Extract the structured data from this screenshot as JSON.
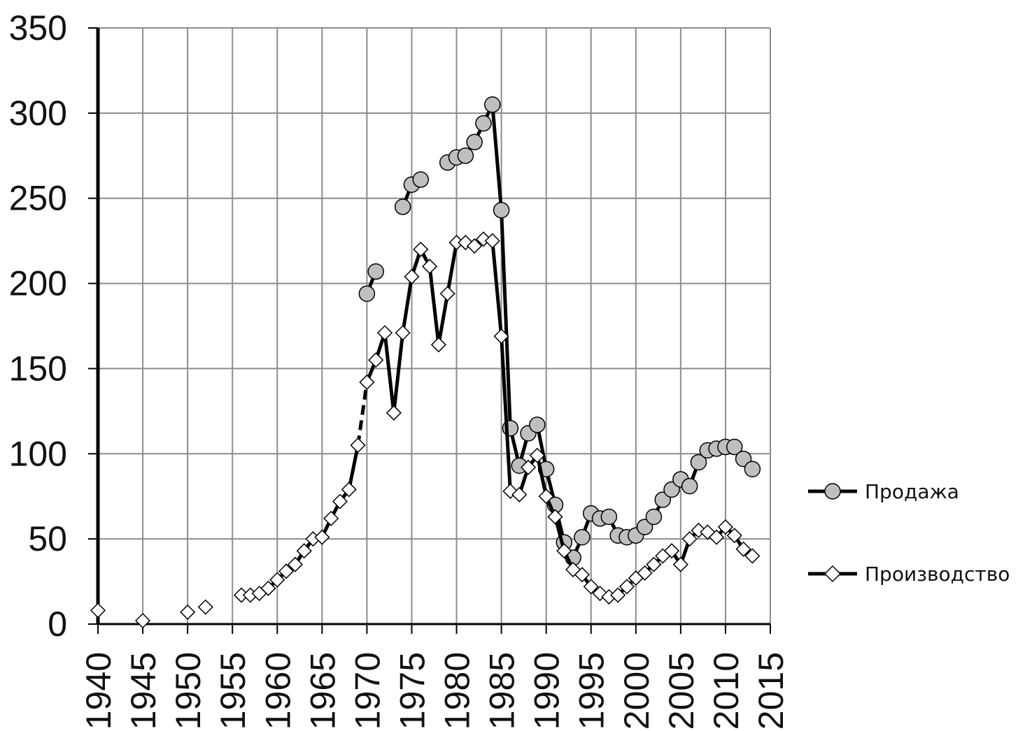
{
  "chart_data": {
    "type": "line",
    "title": "",
    "xlabel": "",
    "ylabel": "",
    "xlim": [
      1940,
      2015
    ],
    "ylim": [
      0,
      350
    ],
    "x_ticks": [
      "1940",
      "1945",
      "1950",
      "1955",
      "1960",
      "1965",
      "1970",
      "1975",
      "1980",
      "1985",
      "1990",
      "1995",
      "2000",
      "2005",
      "2010",
      "2015"
    ],
    "y_ticks": [
      "0",
      "50",
      "100",
      "150",
      "200",
      "250",
      "300",
      "350"
    ],
    "grid": true,
    "legend_position": "right",
    "series": [
      {
        "name": "Продажа",
        "marker": "circle",
        "marker_fill": "#bfbfbf",
        "points": [
          [
            1970,
            194
          ],
          [
            1971,
            207
          ],
          [
            1974,
            245
          ],
          [
            1975,
            258
          ],
          [
            1976,
            261
          ],
          [
            1979,
            271
          ],
          [
            1980,
            274
          ],
          [
            1981,
            275
          ],
          [
            1982,
            283
          ],
          [
            1983,
            294
          ],
          [
            1984,
            305
          ],
          [
            1985,
            243
          ],
          [
            1986,
            115
          ],
          [
            1987,
            93
          ],
          [
            1988,
            112
          ],
          [
            1989,
            117
          ],
          [
            1990,
            91
          ],
          [
            1991,
            70
          ],
          [
            1992,
            48
          ],
          [
            1993,
            39
          ],
          [
            1994,
            51
          ],
          [
            1995,
            65
          ],
          [
            1996,
            62
          ],
          [
            1997,
            63
          ],
          [
            1998,
            52
          ],
          [
            1999,
            51
          ],
          [
            2000,
            52
          ],
          [
            2001,
            57
          ],
          [
            2002,
            63
          ],
          [
            2003,
            73
          ],
          [
            2004,
            79
          ],
          [
            2005,
            85
          ],
          [
            2006,
            81
          ],
          [
            2007,
            95
          ],
          [
            2008,
            102
          ],
          [
            2009,
            103
          ],
          [
            2010,
            104
          ],
          [
            2011,
            104
          ],
          [
            2012,
            97
          ],
          [
            2013,
            91
          ]
        ],
        "segments": [
          [
            0,
            1
          ],
          [
            2,
            4
          ],
          [
            5,
            39
          ]
        ]
      },
      {
        "name": "Производство",
        "marker": "diamond",
        "marker_fill": "#ffffff",
        "points": [
          [
            1940,
            8
          ],
          [
            1945,
            2
          ],
          [
            1950,
            7
          ],
          [
            1952,
            10
          ],
          [
            1956,
            17
          ],
          [
            1957,
            17
          ],
          [
            1958,
            18
          ],
          [
            1959,
            21
          ],
          [
            1960,
            26
          ],
          [
            1961,
            31
          ],
          [
            1962,
            35
          ],
          [
            1963,
            43
          ],
          [
            1964,
            50
          ],
          [
            1965,
            51
          ],
          [
            1966,
            62
          ],
          [
            1967,
            72
          ],
          [
            1968,
            79
          ],
          [
            1969,
            105
          ],
          [
            1970,
            142
          ],
          [
            1971,
            155
          ],
          [
            1972,
            171
          ],
          [
            1973,
            124
          ],
          [
            1974,
            171
          ],
          [
            1975,
            204
          ],
          [
            1976,
            220
          ],
          [
            1977,
            210
          ],
          [
            1978,
            164
          ],
          [
            1979,
            194
          ],
          [
            1980,
            224
          ],
          [
            1981,
            224
          ],
          [
            1982,
            222
          ],
          [
            1983,
            226
          ],
          [
            1984,
            225
          ],
          [
            1985,
            169
          ],
          [
            1986,
            78
          ],
          [
            1987,
            76
          ],
          [
            1988,
            92
          ],
          [
            1989,
            99
          ],
          [
            1990,
            75
          ],
          [
            1991,
            63
          ],
          [
            1992,
            43
          ],
          [
            1993,
            32
          ],
          [
            1994,
            29
          ],
          [
            1995,
            22
          ],
          [
            1996,
            18
          ],
          [
            1997,
            16
          ],
          [
            1998,
            17
          ],
          [
            1999,
            22
          ],
          [
            2000,
            27
          ],
          [
            2001,
            30
          ],
          [
            2002,
            35
          ],
          [
            2003,
            40
          ],
          [
            2004,
            43
          ],
          [
            2005,
            35
          ],
          [
            2006,
            50
          ],
          [
            2007,
            55
          ],
          [
            2008,
            54
          ],
          [
            2009,
            51
          ],
          [
            2010,
            57
          ],
          [
            2011,
            52
          ],
          [
            2012,
            44
          ],
          [
            2013,
            40
          ]
        ],
        "segments": [
          [
            4,
            17
          ],
          [
            18,
            61
          ]
        ],
        "dashed_links": [
          [
            17,
            18
          ]
        ]
      }
    ]
  }
}
